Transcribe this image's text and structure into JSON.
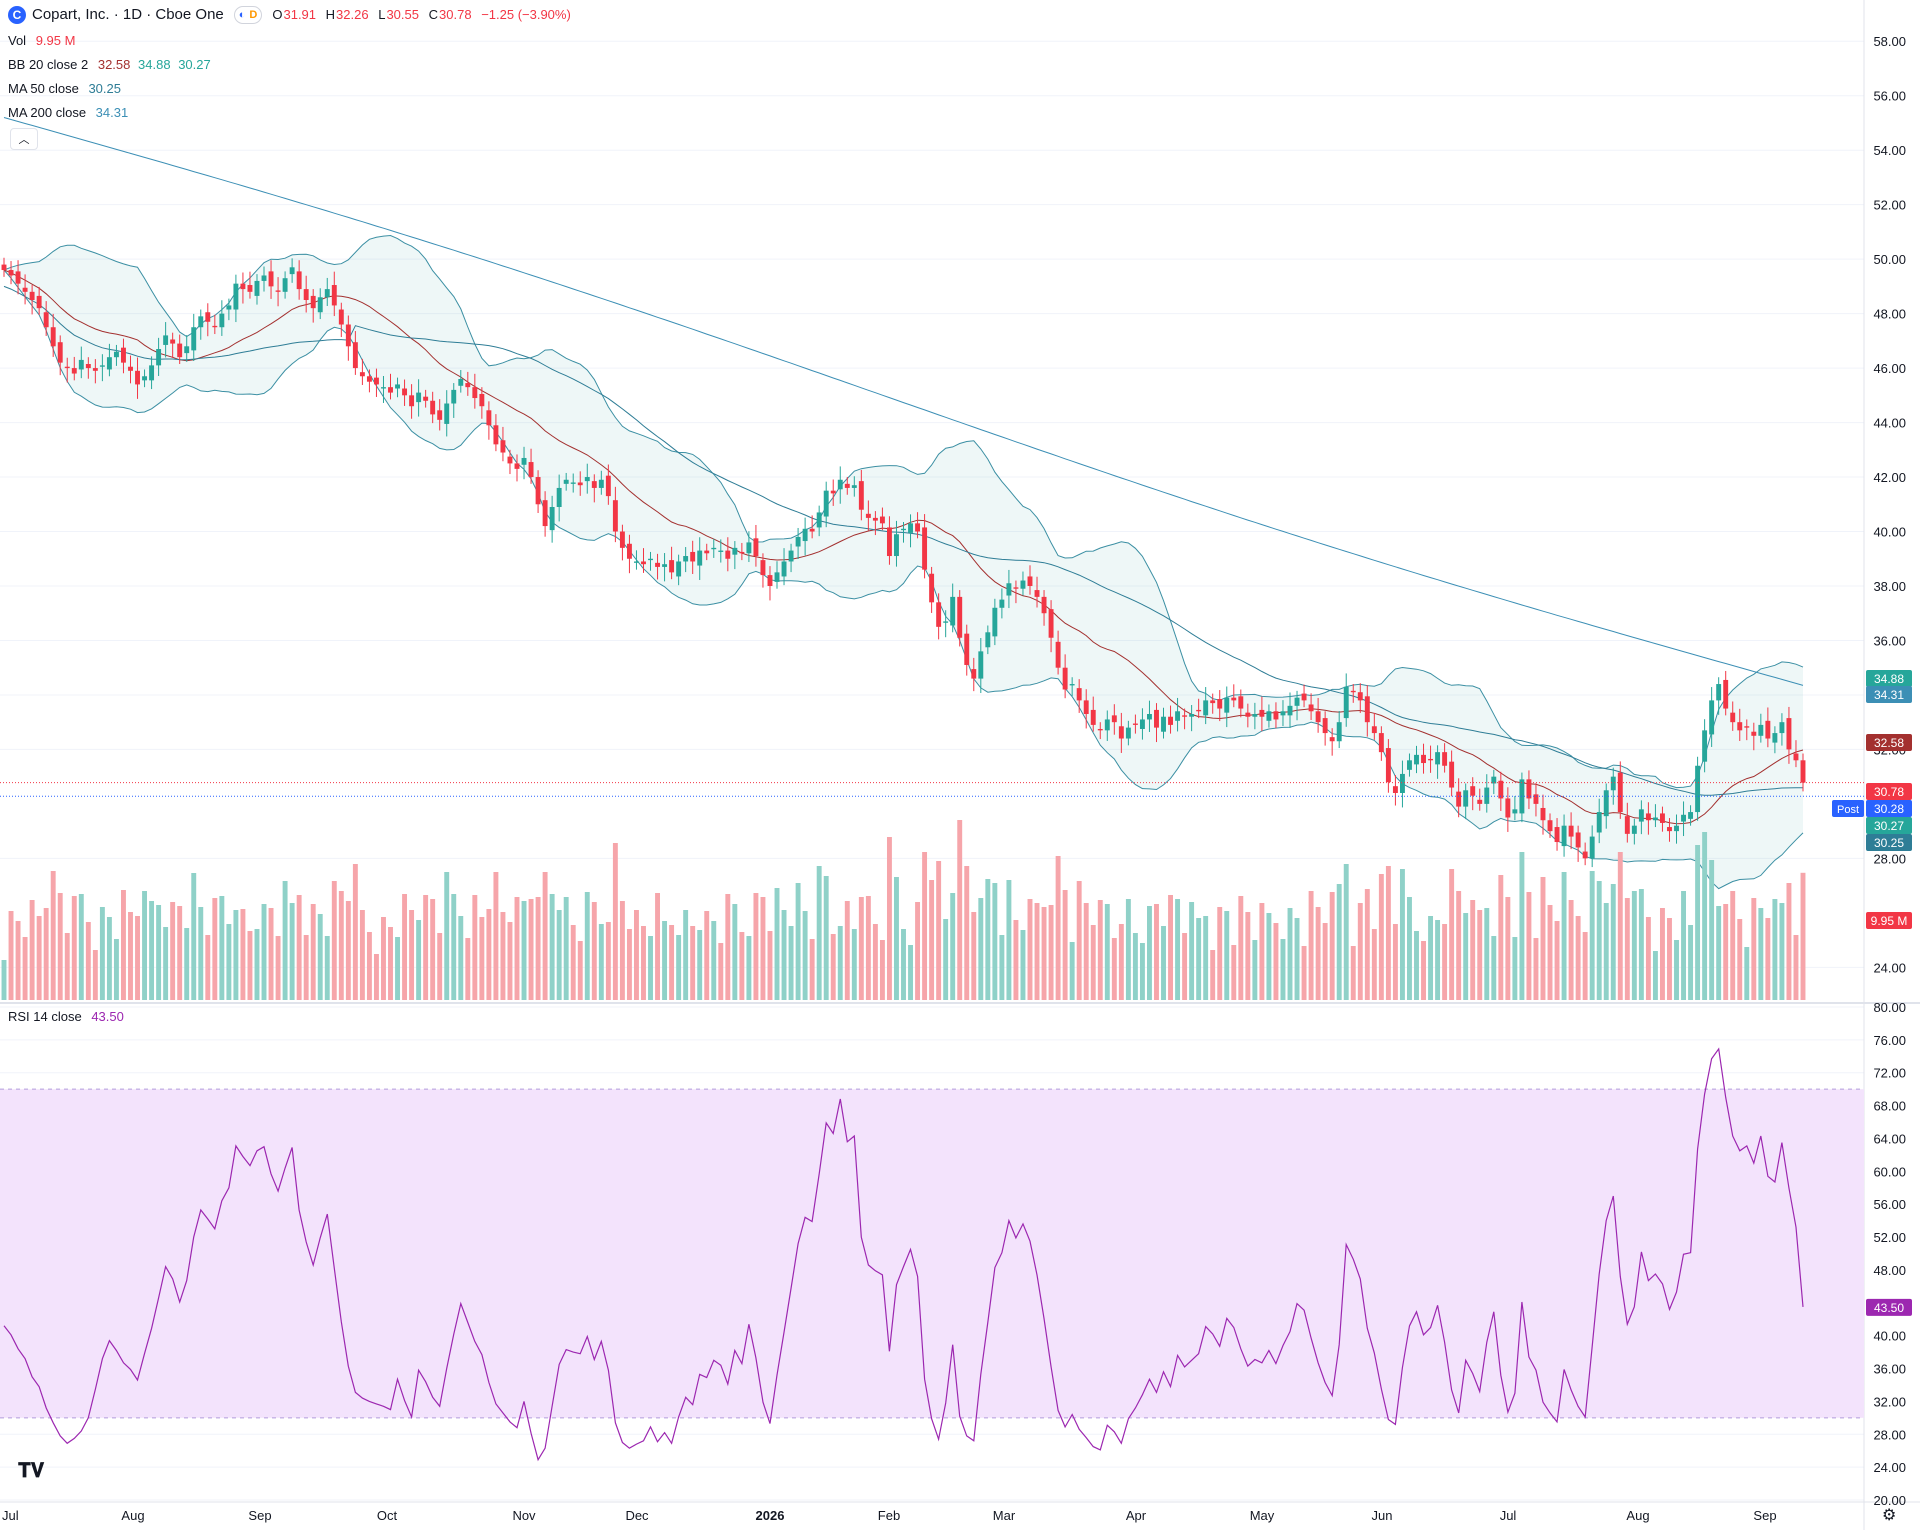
{
  "header": {
    "ticker_icon": "C",
    "title": "Copart, Inc. · 1D · Cboe One",
    "session_icon": "moon-icon",
    "delay_badge": "D",
    "ohlc": {
      "o_label": "O",
      "o": "31.91",
      "h_label": "H",
      "h": "32.26",
      "l_label": "L",
      "l": "30.55",
      "c_label": "C",
      "c": "30.78",
      "change": "−1.25 (−3.90%)"
    }
  },
  "legend": {
    "vol": {
      "name": "Vol",
      "value": "9.95 M"
    },
    "bb": {
      "name": "BB 20 close 2",
      "basis": "32.58",
      "upper": "34.88",
      "lower": "30.27"
    },
    "ma50": {
      "name": "MA 50 close",
      "value": "30.25"
    },
    "ma200": {
      "name": "MA 200 close",
      "value": "34.31"
    },
    "rsi": {
      "name": "RSI 14 close",
      "value": "43.50"
    }
  },
  "colors": {
    "up": "#26a69a",
    "down": "#f23645",
    "up_vol": "#8fd1c8",
    "down_vol": "#f6a5aa",
    "bb_band": "#3b8fa3",
    "bb_fill": "rgba(66,170,170,0.09)",
    "bb_basis": "#a3302f",
    "ma50": "#2e7d96",
    "ma200": "#3c8fb5",
    "rsi_line": "#9c27b0",
    "rsi_fill": "#f3e3fc",
    "grid": "#f0f3fa",
    "axis_text": "#131722",
    "post": "#2962ff"
  },
  "price_axis": {
    "ticks": [
      "58.00",
      "56.00",
      "54.00",
      "52.00",
      "50.00",
      "48.00",
      "46.00",
      "44.00",
      "42.00",
      "40.00",
      "38.00",
      "36.00",
      "34.00",
      "32.00",
      "28.00",
      "24.00"
    ],
    "labels": [
      {
        "text": "34.88",
        "color": "#26a69a",
        "name": "bb-upper-label"
      },
      {
        "text": "34.31",
        "color": "#3c8fb5",
        "name": "ma200-label"
      },
      {
        "text": "32.58",
        "color": "#a3302f",
        "name": "bb-basis-label"
      },
      {
        "text": "30.78",
        "color": "#f23645",
        "name": "last-price-label"
      },
      {
        "text": "30.28",
        "color": "#2962ff",
        "name": "post-price-label"
      },
      {
        "text": "30.27",
        "color": "#26a69a",
        "name": "bb-lower-label"
      },
      {
        "text": "30.25",
        "color": "#2e7d96",
        "name": "ma50-label"
      },
      {
        "text": "9.95 M",
        "color": "#f23645",
        "name": "volume-label"
      }
    ],
    "post_tag": "Post"
  },
  "rsi_axis": {
    "ticks": [
      "80.00",
      "76.00",
      "72.00",
      "68.00",
      "64.00",
      "60.00",
      "56.00",
      "52.00",
      "48.00",
      "44.00",
      "40.00",
      "36.00",
      "32.00",
      "28.00",
      "24.00",
      "20.00"
    ],
    "current_label": "43.50"
  },
  "time_axis": {
    "labels": [
      "Jul",
      "Aug",
      "Sep",
      "Oct",
      "Nov",
      "Dec",
      "2026",
      "Feb",
      "Mar",
      "Apr",
      "May",
      "Jun",
      "Jul",
      "Aug",
      "Sep"
    ]
  },
  "chart_data": {
    "type": "candlestick",
    "symbol": "Copart, Inc.",
    "interval": "1D",
    "price_range": [
      22.8,
      59.0
    ],
    "last_close": 30.78,
    "post_market": 30.28,
    "close_series": [
      49.6,
      49.4,
      49.1,
      48.8,
      48.5,
      48.2,
      47.5,
      46.8,
      46.2,
      46.0,
      45.8,
      46.3,
      46.0,
      45.9,
      46.1,
      46.4,
      46.6,
      46.2,
      45.9,
      45.4,
      45.7,
      46.1,
      46.7,
      47.2,
      46.9,
      46.4,
      46.8,
      47.5,
      47.9,
      47.7,
      47.5,
      48.0,
      48.3,
      49.1,
      48.9,
      48.8,
      49.2,
      49.4,
      49.0,
      48.8,
      49.3,
      49.7,
      48.9,
      48.5,
      48.2,
      48.6,
      48.9,
      48.3,
      47.6,
      46.8,
      46.0,
      45.7,
      45.5,
      45.4,
      45.3,
      45.1,
      45.4,
      45.0,
      44.6,
      45.1,
      44.8,
      44.3,
      44.1,
      44.7,
      45.2,
      45.6,
      45.3,
      44.9,
      44.6,
      43.9,
      43.2,
      42.9,
      42.5,
      42.3,
      42.7,
      42.0,
      41.0,
      40.2,
      40.9,
      41.6,
      41.9,
      41.8,
      41.7,
      42.0,
      41.6,
      41.9,
      41.3,
      40.0,
      39.4,
      39.0,
      38.9,
      38.8,
      39.0,
      38.7,
      38.8,
      38.5,
      38.9,
      39.1,
      38.9,
      39.3,
      39.2,
      39.4,
      39.3,
      39.0,
      39.4,
      39.2,
      39.6,
      39.1,
      38.4,
      38.0,
      38.5,
      38.9,
      39.3,
      39.8,
      40.1,
      40.0,
      40.7,
      41.5,
      41.4,
      41.9,
      41.6,
      41.7,
      40.8,
      40.5,
      40.4,
      40.3,
      39.1,
      39.9,
      40.1,
      40.3,
      40.0,
      38.6,
      37.4,
      36.5,
      36.7,
      37.6,
      36.1,
      35.1,
      34.6,
      35.6,
      36.3,
      37.2,
      37.5,
      38.1,
      37.9,
      38.2,
      38.0,
      37.6,
      37.0,
      36.1,
      35.0,
      34.2,
      34.4,
      33.8,
      33.3,
      32.9,
      32.7,
      33.1,
      33.0,
      32.4,
      32.8,
      32.9,
      33.1,
      33.3,
      32.8,
      33.2,
      32.9,
      33.4,
      33.2,
      33.3,
      33.4,
      33.8,
      33.7,
      33.5,
      33.9,
      33.8,
      33.5,
      33.2,
      33.3,
      33.2,
      33.4,
      33.1,
      33.4,
      33.6,
      33.9,
      33.8,
      33.4,
      33.0,
      32.6,
      32.3,
      33.0,
      34.3,
      34.1,
      33.8,
      33.0,
      32.6,
      31.9,
      30.8,
      30.4,
      31.1,
      31.6,
      31.8,
      31.5,
      31.6,
      31.9,
      31.4,
      30.6,
      29.9,
      30.5,
      30.3,
      30.0,
      30.6,
      31.0,
      30.2,
      29.5,
      29.8,
      30.9,
      30.2,
      30.0,
      29.4,
      29.0,
      28.6,
      29.2,
      28.8,
      28.4,
      28.0,
      28.8,
      29.7,
      30.5,
      31.0,
      29.7,
      28.9,
      29.2,
      29.8,
      29.4,
      29.5,
      29.3,
      29.0,
      29.2,
      29.6,
      29.7,
      31.4,
      32.7,
      33.8,
      34.4,
      33.5,
      33.0,
      32.7,
      32.8,
      32.5,
      32.9,
      32.4,
      32.6,
      33.0,
      32.0,
      31.6,
      30.78
    ],
    "bollinger": {
      "period": 20,
      "stddev": 2,
      "basis": 32.58,
      "upper": 34.88,
      "lower": 30.27
    },
    "ma50": 30.25,
    "ma200": 34.31,
    "volume_last": "9.95 M",
    "rsi": {
      "period": 14,
      "last": 43.5,
      "range": [
        20,
        80
      ],
      "upper_band": 70,
      "lower_band": 30,
      "series": [
        41.2,
        40.1,
        38.4,
        37.2,
        35.0,
        33.8,
        31.2,
        29.4,
        27.8,
        26.9,
        27.5,
        28.4,
        30.0,
        33.5,
        37.2,
        39.4,
        38.2,
        36.7,
        35.9,
        34.6,
        37.8,
        40.9,
        44.6,
        48.4,
        46.9,
        44.1,
        46.7,
        52.0,
        55.3,
        54.2,
        53.0,
        56.4,
        58.0,
        63.1,
        61.8,
        60.7,
        62.5,
        63.0,
        59.7,
        57.6,
        60.4,
        62.9,
        55.3,
        51.4,
        48.6,
        51.9,
        54.8,
        48.2,
        41.7,
        36.3,
        33.1,
        32.4,
        32.0,
        31.7,
        31.4,
        31.0,
        34.7,
        32.1,
        30.1,
        35.8,
        34.4,
        32.5,
        31.4,
        36.0,
        40.2,
        43.9,
        41.6,
        39.3,
        37.7,
        34.3,
        31.7,
        30.6,
        29.5,
        28.8,
        32.0,
        28.1,
        24.9,
        26.3,
        31.4,
        36.5,
        38.3,
        38.0,
        37.8,
        39.9,
        37.1,
        39.3,
        35.8,
        29.4,
        27.0,
        26.3,
        26.8,
        27.2,
        28.9,
        27.1,
        28.2,
        26.9,
        30.1,
        32.5,
        31.6,
        35.3,
        34.9,
        37.0,
        36.4,
        34.1,
        38.2,
        36.6,
        41.4,
        37.3,
        31.9,
        29.3,
        35.2,
        40.4,
        45.8,
        51.2,
        54.4,
        53.9,
        59.7,
        65.9,
        64.6,
        68.8,
        63.6,
        64.3,
        52.0,
        48.6,
        47.9,
        47.4,
        38.1,
        46.2,
        48.4,
        50.5,
        47.2,
        34.7,
        29.9,
        27.4,
        31.8,
        38.9,
        30.2,
        27.8,
        27.2,
        35.3,
        41.6,
        48.3,
        50.1,
        54.0,
        51.9,
        53.6,
        51.5,
        47.4,
        42.1,
        36.2,
        30.9,
        28.9,
        30.4,
        28.6,
        27.6,
        26.5,
        26.1,
        29.1,
        28.3,
        26.9,
        29.9,
        31.2,
        32.8,
        34.7,
        33.1,
        35.6,
        33.8,
        37.6,
        36.2,
        37.0,
        37.8,
        41.1,
        40.2,
        38.7,
        42.1,
        41.0,
        38.4,
        36.3,
        37.1,
        36.7,
        38.2,
        36.6,
        38.8,
        40.5,
        43.9,
        43.1,
        39.7,
        36.7,
        34.3,
        32.7,
        38.9,
        51.1,
        49.3,
        46.9,
        40.9,
        37.9,
        33.5,
        29.8,
        29.2,
        36.1,
        41.2,
        42.9,
        40.1,
        41.0,
        43.7,
        39.2,
        33.4,
        30.6,
        37.0,
        35.4,
        33.2,
        39.2,
        42.9,
        35.2,
        30.7,
        33.0,
        44.1,
        37.4,
        35.8,
        31.9,
        30.6,
        29.5,
        35.9,
        33.4,
        31.4,
        30.1,
        38.7,
        47.5,
        54.0,
        57.0,
        47.2,
        41.4,
        43.5,
        50.2,
        46.7,
        47.5,
        46.3,
        43.2,
        45.3,
        49.9,
        50.1,
        62.7,
        69.4,
        73.7,
        74.9,
        69.0,
        64.3,
        62.5,
        63.1,
        61.0,
        64.3,
        59.4,
        58.7,
        63.5,
        58.0,
        53.2,
        43.5
      ]
    }
  }
}
